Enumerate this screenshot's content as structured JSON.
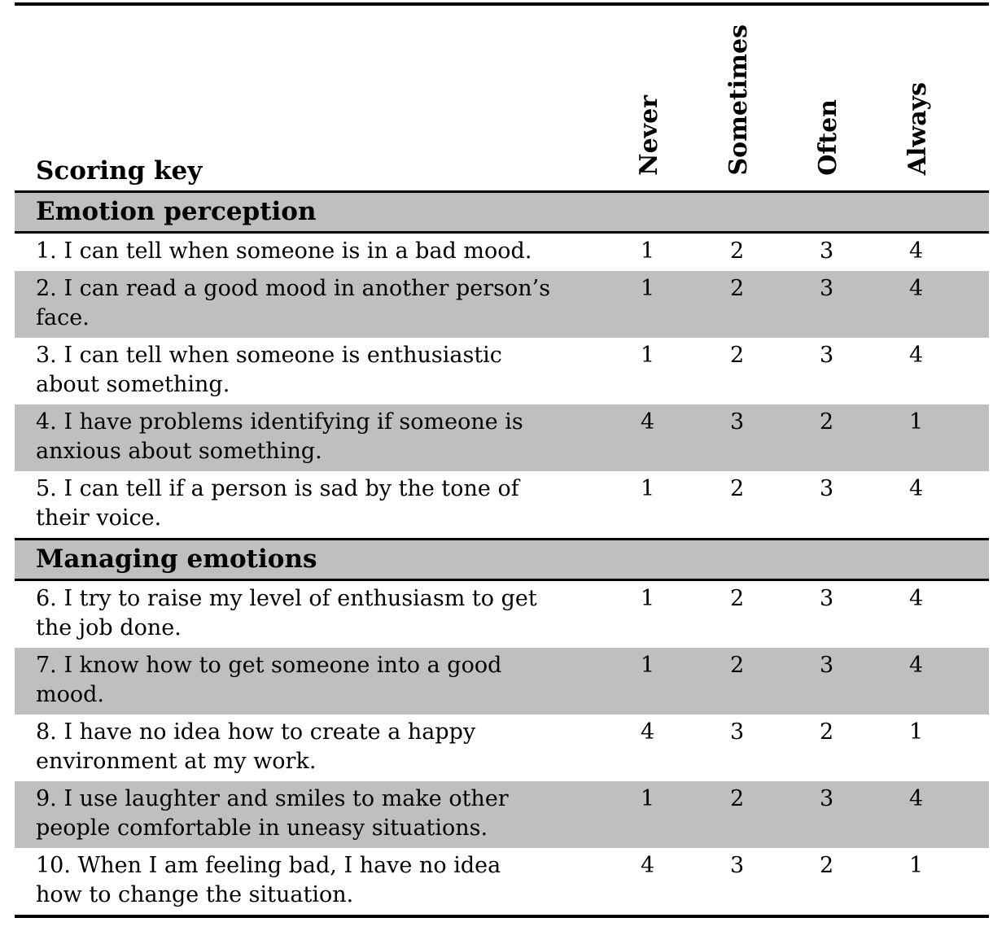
{
  "table": {
    "title": "Scoring key",
    "columns": [
      "Never",
      "Sometimes",
      "Often",
      "Always"
    ],
    "colors": {
      "shaded_row": "#bfbfbf",
      "rule": "#000000",
      "background": "#ffffff",
      "text": "#000000"
    },
    "sections": [
      {
        "label": "Emotion perception",
        "items": [
          {
            "lines": [
              "1. I can tell when someone is in a bad mood."
            ],
            "scores": [
              "1",
              "2",
              "3",
              "4"
            ]
          },
          {
            "lines": [
              "2. I can read a good mood in another person’s",
              "face."
            ],
            "scores": [
              "1",
              "2",
              "3",
              "4"
            ]
          },
          {
            "lines": [
              "3. I can tell when someone is enthusiastic",
              "about something."
            ],
            "scores": [
              "1",
              "2",
              "3",
              "4"
            ]
          },
          {
            "lines": [
              "4. I have problems identifying if someone is",
              "anxious about something."
            ],
            "scores": [
              "4",
              "3",
              "2",
              "1"
            ]
          },
          {
            "lines": [
              "5. I can tell if a person is sad by the tone of",
              "their voice."
            ],
            "scores": [
              "1",
              "2",
              "3",
              "4"
            ]
          }
        ]
      },
      {
        "label": "Managing emotions",
        "items": [
          {
            "lines": [
              "6. I try to raise my level of enthusiasm to get",
              "the job done."
            ],
            "scores": [
              "1",
              "2",
              "3",
              "4"
            ]
          },
          {
            "lines": [
              "7. I know how to get someone into a good",
              "mood."
            ],
            "scores": [
              "1",
              "2",
              "3",
              "4"
            ]
          },
          {
            "lines": [
              "8. I have no idea how to create a happy",
              "environment at my work."
            ],
            "scores": [
              "4",
              "3",
              "2",
              "1"
            ]
          },
          {
            "lines": [
              "9. I use laughter and smiles to make other",
              "people comfortable in uneasy situations."
            ],
            "scores": [
              "1",
              "2",
              "3",
              "4"
            ]
          },
          {
            "lines": [
              "10. When I am feeling bad, I have no idea",
              "how to change the situation."
            ],
            "scores": [
              "4",
              "3",
              "2",
              "1"
            ]
          }
        ]
      }
    ]
  }
}
